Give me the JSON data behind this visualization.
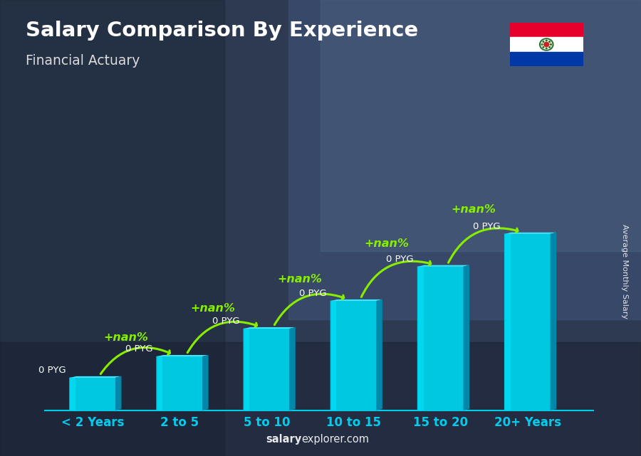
{
  "title": "Salary Comparison By Experience",
  "subtitle": "Financial Actuary",
  "ylabel": "Average Monthly Salary",
  "xlabel_labels": [
    "< 2 Years",
    "2 to 5",
    "5 to 10",
    "10 to 15",
    "15 to 20",
    "20+ Years"
  ],
  "value_labels": [
    "0 PYG",
    "0 PYG",
    "0 PYG",
    "0 PYG",
    "0 PYG",
    "0 PYG"
  ],
  "pct_labels": [
    "+nan%",
    "+nan%",
    "+nan%",
    "+nan%",
    "+nan%"
  ],
  "watermark_bold": "salary",
  "watermark_normal": "explorer.com",
  "bar_color_face": "#00c8e0",
  "bar_color_light": "#00e8ff",
  "bar_color_dark": "#0088aa",
  "bar_color_top": "#40e8ff",
  "arrow_color": "#88ee00",
  "label_color": "#ffffff",
  "pct_color": "#88ee00",
  "title_color": "#ffffff",
  "subtitle_color": "#dddddd",
  "tick_color": "#00ccee",
  "bg_color": "#2a3550",
  "bar_heights": [
    1.0,
    1.65,
    2.5,
    3.35,
    4.4,
    5.4
  ],
  "bar_width": 0.52,
  "flag_red": "#E8002D",
  "flag_white": "#FFFFFF",
  "flag_blue": "#0038A8"
}
